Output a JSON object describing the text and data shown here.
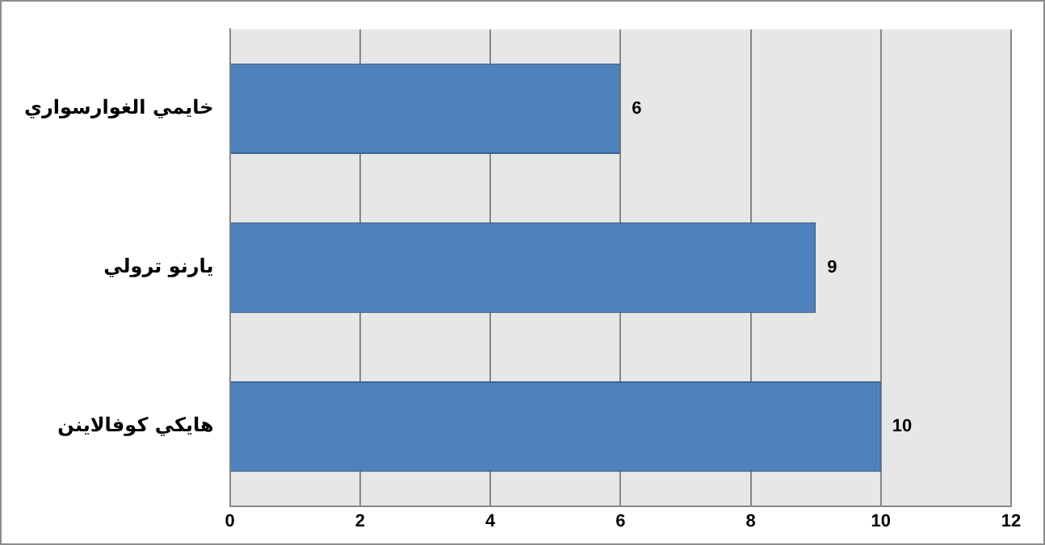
{
  "chart_data": {
    "type": "bar",
    "orientation": "horizontal",
    "categories": [
      "خايمي الغوارسواري",
      "يارنو ترولي",
      "هايكي كوفالاينن"
    ],
    "values": [
      6,
      9,
      10
    ],
    "color": "#4f81bd",
    "xlim": [
      0,
      12
    ],
    "xticks": [
      0,
      2,
      4,
      6,
      8,
      10,
      12
    ],
    "grid": "x",
    "data_labels": true
  }
}
